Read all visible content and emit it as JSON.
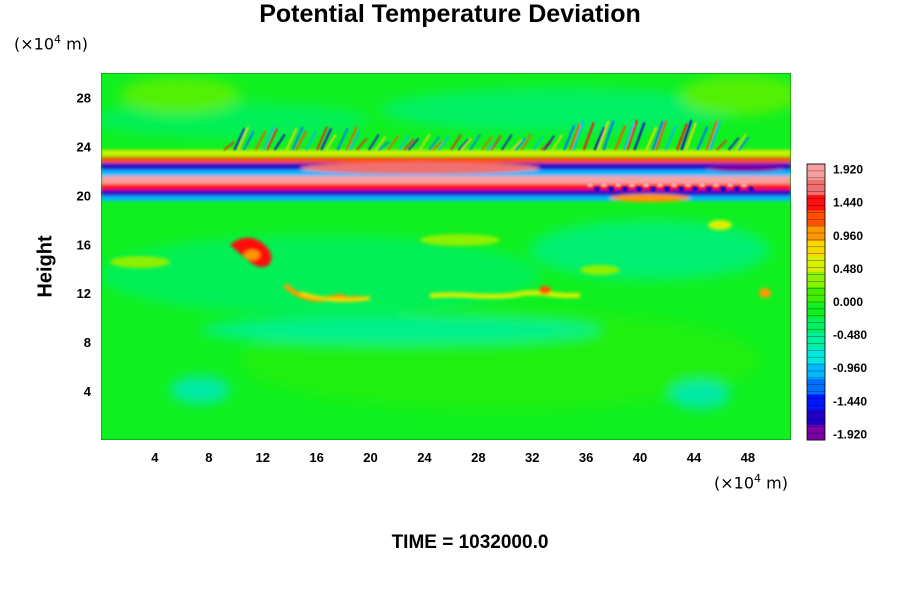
{
  "chart_data": {
    "type": "heatmap",
    "title": "Potential Temperature Deviation",
    "ylabel": "Height",
    "y_unit": {
      "prefix": "(×10",
      "exp": "4",
      "suffix": " m)"
    },
    "x_unit": {
      "prefix": "(×10",
      "exp": "4",
      "suffix": " m)"
    },
    "xlim": [
      0,
      51.2
    ],
    "ylim": [
      0,
      30
    ],
    "x_ticks": [
      "4",
      "8",
      "12",
      "16",
      "20",
      "24",
      "28",
      "32",
      "36",
      "40",
      "44",
      "48"
    ],
    "x_tick_values": [
      4,
      8,
      12,
      16,
      20,
      24,
      28,
      32,
      36,
      40,
      44,
      48
    ],
    "y_ticks": [
      "4",
      "8",
      "12",
      "16",
      "20",
      "24",
      "28"
    ],
    "y_tick_values": [
      4,
      8,
      12,
      16,
      20,
      24,
      28
    ],
    "colorbar": {
      "min": -2.0,
      "max": 2.0,
      "labels": [
        "1.920",
        "1.440",
        "0.960",
        "0.480",
        "0.000",
        "-0.480",
        "-0.960",
        "-1.440",
        "-1.920"
      ],
      "label_values": [
        1.92,
        1.44,
        0.96,
        0.48,
        0.0,
        -0.48,
        -0.96,
        -1.44,
        -1.92
      ],
      "colors": [
        "#7b00a8",
        "#2000c8",
        "#0018ff",
        "#0070ff",
        "#00b8ff",
        "#00e8e0",
        "#00f0a0",
        "#00f060",
        "#10f020",
        "#40f000",
        "#8cf000",
        "#d8f000",
        "#f8d800",
        "#ff9800",
        "#ff5000",
        "#ff1010",
        "#f07070",
        "#f8a0a0"
      ]
    },
    "features": [
      {
        "name": "stratospheric oscillation band",
        "y_range": [
          19.5,
          23
        ],
        "max": 1.92,
        "min": -1.92
      },
      {
        "name": "warm patches near tropopause",
        "y_range": [
          11.5,
          17
        ],
        "max": 1.7
      }
    ]
  },
  "footer": {
    "time_label": "TIME = 1032000.0"
  }
}
